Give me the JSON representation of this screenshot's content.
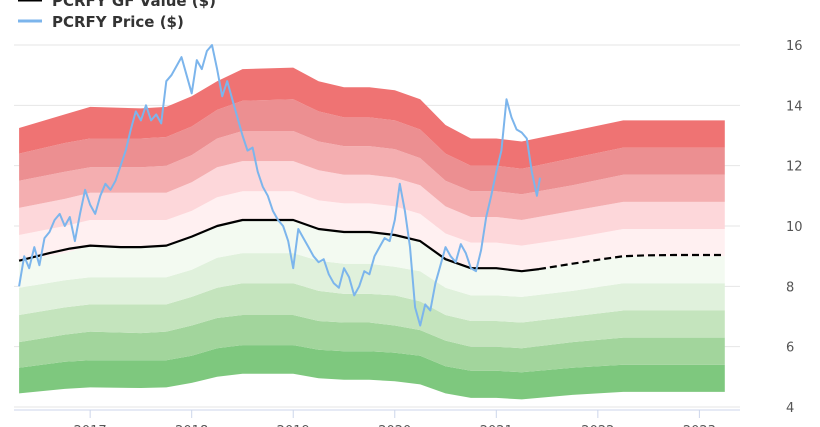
{
  "chart_data": {
    "type": "area",
    "legend": {
      "placement": "top-left",
      "items": [
        {
          "name": "PCRFY GF Value ($)",
          "color": "#000000",
          "style": "solid-line"
        },
        {
          "name": "PCRFY Price ($)",
          "color": "#7cb5ec",
          "style": "solid-line"
        }
      ]
    },
    "x_axis": {
      "ticks": [
        {
          "value": 2017,
          "label": "2017"
        },
        {
          "value": 2018,
          "label": "2018"
        },
        {
          "value": 2019,
          "label": "2019"
        },
        {
          "value": 2020,
          "label": "2020"
        },
        {
          "value": 2021,
          "label": "2021"
        },
        {
          "value": 2022,
          "label": "2022"
        },
        {
          "value": 2023,
          "label": "2023"
        }
      ],
      "range": [
        2016.25,
        2023.4
      ]
    },
    "y_axis": {
      "position": "right",
      "ticks": [
        4,
        6,
        8,
        10,
        12,
        14,
        16
      ],
      "range": [
        3.9,
        16.1
      ],
      "grid": true
    },
    "gf_value": {
      "name": "PCRFY GF Value ($)",
      "color": "#000000",
      "solid": [
        [
          2016.3,
          8.85
        ],
        [
          2016.6,
          9.1
        ],
        [
          2016.8,
          9.25
        ],
        [
          2017.0,
          9.35
        ],
        [
          2017.3,
          9.3
        ],
        [
          2017.5,
          9.3
        ],
        [
          2017.75,
          9.35
        ],
        [
          2018.0,
          9.65
        ],
        [
          2018.25,
          10.0
        ],
        [
          2018.5,
          10.2
        ],
        [
          2018.75,
          10.2
        ],
        [
          2019.0,
          10.2
        ],
        [
          2019.25,
          9.9
        ],
        [
          2019.5,
          9.8
        ],
        [
          2019.75,
          9.8
        ],
        [
          2020.0,
          9.7
        ],
        [
          2020.25,
          9.5
        ],
        [
          2020.5,
          8.9
        ],
        [
          2020.75,
          8.6
        ],
        [
          2021.0,
          8.6
        ],
        [
          2021.25,
          8.5
        ],
        [
          2021.42,
          8.57
        ]
      ],
      "projected": [
        [
          2021.42,
          8.57
        ],
        [
          2021.75,
          8.75
        ],
        [
          2022.0,
          8.88
        ],
        [
          2022.25,
          9.0
        ],
        [
          2022.5,
          9.03
        ],
        [
          2022.75,
          9.04
        ],
        [
          2023.0,
          9.04
        ],
        [
          2023.25,
          9.04
        ]
      ]
    },
    "price": {
      "name": "PCRFY Price ($)",
      "color": "#7cb5ec",
      "points": [
        [
          2016.3,
          8.0
        ],
        [
          2016.35,
          9.0
        ],
        [
          2016.4,
          8.6
        ],
        [
          2016.45,
          9.3
        ],
        [
          2016.5,
          8.7
        ],
        [
          2016.55,
          9.6
        ],
        [
          2016.6,
          9.8
        ],
        [
          2016.65,
          10.2
        ],
        [
          2016.7,
          10.4
        ],
        [
          2016.75,
          10.0
        ],
        [
          2016.8,
          10.3
        ],
        [
          2016.85,
          9.5
        ],
        [
          2016.9,
          10.4
        ],
        [
          2016.95,
          11.2
        ],
        [
          2017.0,
          10.7
        ],
        [
          2017.05,
          10.4
        ],
        [
          2017.1,
          11.0
        ],
        [
          2017.15,
          11.4
        ],
        [
          2017.2,
          11.2
        ],
        [
          2017.25,
          11.5
        ],
        [
          2017.3,
          12.0
        ],
        [
          2017.35,
          12.5
        ],
        [
          2017.4,
          13.2
        ],
        [
          2017.45,
          13.8
        ],
        [
          2017.5,
          13.5
        ],
        [
          2017.55,
          14.0
        ],
        [
          2017.6,
          13.5
        ],
        [
          2017.65,
          13.7
        ],
        [
          2017.7,
          13.4
        ],
        [
          2017.75,
          14.8
        ],
        [
          2017.8,
          15.0
        ],
        [
          2017.85,
          15.3
        ],
        [
          2017.9,
          15.6
        ],
        [
          2017.95,
          15.0
        ],
        [
          2018.0,
          14.4
        ],
        [
          2018.05,
          15.5
        ],
        [
          2018.1,
          15.2
        ],
        [
          2018.15,
          15.8
        ],
        [
          2018.2,
          16.0
        ],
        [
          2018.25,
          15.2
        ],
        [
          2018.3,
          14.3
        ],
        [
          2018.35,
          14.8
        ],
        [
          2018.4,
          14.2
        ],
        [
          2018.45,
          13.6
        ],
        [
          2018.5,
          13.0
        ],
        [
          2018.55,
          12.5
        ],
        [
          2018.6,
          12.6
        ],
        [
          2018.65,
          11.8
        ],
        [
          2018.7,
          11.3
        ],
        [
          2018.75,
          11.0
        ],
        [
          2018.8,
          10.5
        ],
        [
          2018.85,
          10.2
        ],
        [
          2018.9,
          10.0
        ],
        [
          2018.95,
          9.5
        ],
        [
          2019.0,
          8.6
        ],
        [
          2019.05,
          9.9
        ],
        [
          2019.1,
          9.6
        ],
        [
          2019.15,
          9.3
        ],
        [
          2019.2,
          9.0
        ],
        [
          2019.25,
          8.8
        ],
        [
          2019.3,
          8.9
        ],
        [
          2019.35,
          8.4
        ],
        [
          2019.4,
          8.1
        ],
        [
          2019.45,
          7.95
        ],
        [
          2019.5,
          8.6
        ],
        [
          2019.55,
          8.3
        ],
        [
          2019.6,
          7.7
        ],
        [
          2019.65,
          8.0
        ],
        [
          2019.7,
          8.5
        ],
        [
          2019.75,
          8.4
        ],
        [
          2019.8,
          9.0
        ],
        [
          2019.85,
          9.3
        ],
        [
          2019.9,
          9.6
        ],
        [
          2019.95,
          9.5
        ],
        [
          2020.0,
          10.2
        ],
        [
          2020.05,
          11.4
        ],
        [
          2020.1,
          10.5
        ],
        [
          2020.15,
          9.3
        ],
        [
          2020.2,
          7.3
        ],
        [
          2020.25,
          6.7
        ],
        [
          2020.3,
          7.4
        ],
        [
          2020.35,
          7.2
        ],
        [
          2020.4,
          8.1
        ],
        [
          2020.45,
          8.7
        ],
        [
          2020.5,
          9.3
        ],
        [
          2020.55,
          9.0
        ],
        [
          2020.6,
          8.8
        ],
        [
          2020.65,
          9.4
        ],
        [
          2020.7,
          9.1
        ],
        [
          2020.75,
          8.6
        ],
        [
          2020.8,
          8.5
        ],
        [
          2020.85,
          9.2
        ],
        [
          2020.9,
          10.3
        ],
        [
          2020.95,
          11.0
        ],
        [
          2021.0,
          11.8
        ],
        [
          2021.05,
          12.5
        ],
        [
          2021.1,
          14.2
        ],
        [
          2021.15,
          13.6
        ],
        [
          2021.2,
          13.2
        ],
        [
          2021.25,
          13.1
        ],
        [
          2021.3,
          12.9
        ],
        [
          2021.35,
          11.8
        ],
        [
          2021.4,
          11.0
        ],
        [
          2021.43,
          11.6
        ]
      ]
    },
    "bands": {
      "note_colors": [
        "#7ec87e",
        "#a8d8a0",
        "#c6e6c0",
        "#dff0da",
        "#f2f9f0",
        "#fff0f0",
        "#fdd8da",
        "#f5b0b2",
        "#f09a9c",
        "#f07a7a"
      ],
      "x": [
        2016.3,
        2016.75,
        2017.0,
        2017.5,
        2017.75,
        2018.0,
        2018.25,
        2018.5,
        2019.0,
        2019.25,
        2019.5,
        2019.75,
        2020.0,
        2020.25,
        2020.5,
        2020.75,
        2021.0,
        2021.25,
        2021.75,
        2022.25,
        2022.5,
        2023.25
      ],
      "levels": [
        [
          4.45,
          4.6,
          4.65,
          4.63,
          4.65,
          4.8,
          5.0,
          5.1,
          5.1,
          4.95,
          4.9,
          4.9,
          4.85,
          4.75,
          4.45,
          4.3,
          4.3,
          4.25,
          4.4,
          4.5,
          4.5,
          4.5
        ],
        [
          5.3,
          5.5,
          5.55,
          5.55,
          5.55,
          5.7,
          5.95,
          6.05,
          6.05,
          5.9,
          5.85,
          5.85,
          5.8,
          5.7,
          5.35,
          5.2,
          5.2,
          5.15,
          5.3,
          5.4,
          5.4,
          5.4
        ],
        [
          6.15,
          6.4,
          6.5,
          6.45,
          6.5,
          6.7,
          6.95,
          7.05,
          7.05,
          6.85,
          6.8,
          6.8,
          6.7,
          6.55,
          6.2,
          6.0,
          6.0,
          5.95,
          6.15,
          6.3,
          6.3,
          6.3
        ],
        [
          7.05,
          7.3,
          7.4,
          7.4,
          7.4,
          7.65,
          7.95,
          8.1,
          8.1,
          7.85,
          7.75,
          7.75,
          7.7,
          7.5,
          7.05,
          6.85,
          6.85,
          6.8,
          7.0,
          7.2,
          7.2,
          7.2
        ],
        [
          7.95,
          8.2,
          8.3,
          8.3,
          8.3,
          8.55,
          8.95,
          9.1,
          9.1,
          8.85,
          8.75,
          8.75,
          8.65,
          8.5,
          7.95,
          7.7,
          7.7,
          7.65,
          7.85,
          8.1,
          8.1,
          8.1
        ],
        [
          8.85,
          9.1,
          9.35,
          9.3,
          9.35,
          9.65,
          10.0,
          10.2,
          10.2,
          9.9,
          9.8,
          9.8,
          9.7,
          9.5,
          8.9,
          8.6,
          8.6,
          8.5,
          8.75,
          9.0,
          9.0,
          9.0
        ],
        [
          9.7,
          10.0,
          10.2,
          10.2,
          10.2,
          10.5,
          10.95,
          11.15,
          11.15,
          10.85,
          10.75,
          10.75,
          10.65,
          10.4,
          9.75,
          9.45,
          9.45,
          9.35,
          9.6,
          9.9,
          9.9,
          9.9
        ],
        [
          10.6,
          10.9,
          11.1,
          11.1,
          11.1,
          11.45,
          11.95,
          12.15,
          12.15,
          11.85,
          11.7,
          11.7,
          11.6,
          11.35,
          10.65,
          10.3,
          10.3,
          10.2,
          10.5,
          10.8,
          10.8,
          10.8
        ],
        [
          11.5,
          11.8,
          11.95,
          11.95,
          12.0,
          12.35,
          12.9,
          13.15,
          13.15,
          12.8,
          12.65,
          12.65,
          12.55,
          12.25,
          11.5,
          11.15,
          11.15,
          11.05,
          11.35,
          11.7,
          11.7,
          11.7
        ],
        [
          12.4,
          12.75,
          12.9,
          12.9,
          12.95,
          13.3,
          13.85,
          14.15,
          14.2,
          13.8,
          13.6,
          13.6,
          13.5,
          13.2,
          12.4,
          12.0,
          12.0,
          11.9,
          12.25,
          12.6,
          12.6,
          12.6
        ],
        [
          13.25,
          13.7,
          13.95,
          13.9,
          13.95,
          14.3,
          14.8,
          15.2,
          15.25,
          14.8,
          14.6,
          14.6,
          14.5,
          14.2,
          13.35,
          12.9,
          12.9,
          12.8,
          13.15,
          13.5,
          13.5,
          13.5
        ]
      ],
      "band_colors": [
        "#7ec87e",
        "#a2d59c",
        "#c4e4bd",
        "#e0f1dc",
        "#f3faf1",
        "#fff0f1",
        "#fdd7da",
        "#f4aeb0",
        "#ec8f91",
        "#ef7373"
      ]
    }
  }
}
